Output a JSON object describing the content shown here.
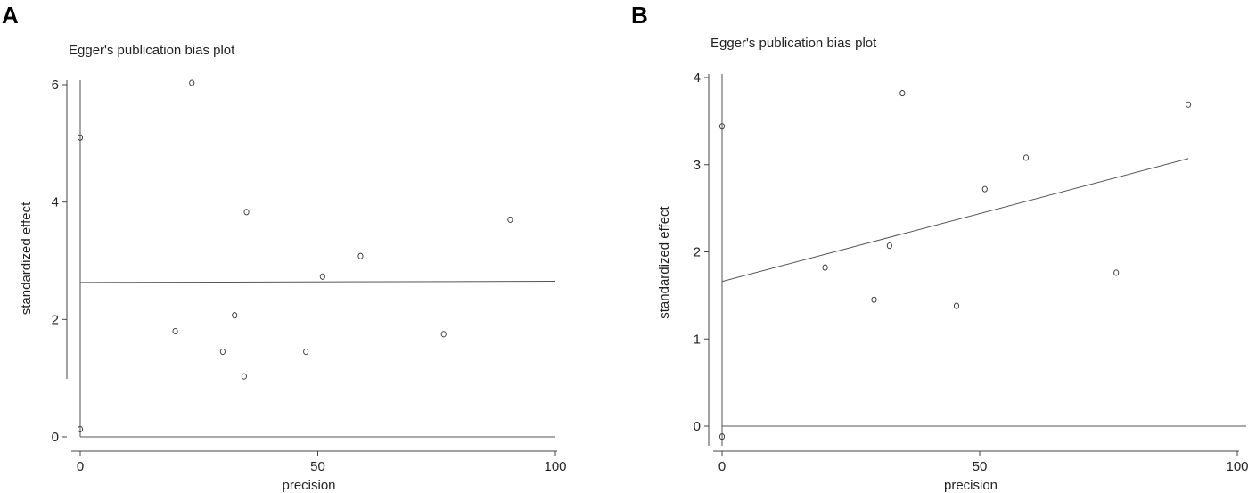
{
  "chart_data": [
    {
      "panel": "A",
      "type": "scatter",
      "title": "Egger's publication bias plot",
      "xlabel": "precision",
      "ylabel": "standardized effect",
      "xlim": [
        0,
        100
      ],
      "ylim": [
        0,
        6
      ],
      "xticks": [
        0,
        50,
        100
      ],
      "yticks": [
        0,
        2,
        4,
        6
      ],
      "grid": false,
      "points": [
        {
          "x": 0,
          "y": 5.1
        },
        {
          "x": 0,
          "y": 0.13
        },
        {
          "x": 23.5,
          "y": 6.03
        },
        {
          "x": 35,
          "y": 3.83
        },
        {
          "x": 20,
          "y": 1.8
        },
        {
          "x": 32.5,
          "y": 2.07
        },
        {
          "x": 30,
          "y": 1.45
        },
        {
          "x": 34.5,
          "y": 1.03
        },
        {
          "x": 47.5,
          "y": 1.45
        },
        {
          "x": 51,
          "y": 2.73
        },
        {
          "x": 59,
          "y": 3.08
        },
        {
          "x": 76.5,
          "y": 1.75
        },
        {
          "x": 90.5,
          "y": 3.7
        }
      ],
      "fit_line": {
        "x": [
          0,
          100
        ],
        "y": [
          2.63,
          2.65
        ]
      }
    },
    {
      "panel": "B",
      "type": "scatter",
      "title": "Egger's publication bias plot",
      "xlabel": "precision",
      "ylabel": "standardized effect",
      "xlim": [
        0,
        100
      ],
      "ylim": [
        0,
        4
      ],
      "xticks": [
        0,
        50,
        100
      ],
      "yticks": [
        0,
        1,
        2,
        3,
        4
      ],
      "grid": false,
      "points": [
        {
          "x": 0,
          "y": 3.44
        },
        {
          "x": 0,
          "y": -0.12
        },
        {
          "x": 35,
          "y": 3.82
        },
        {
          "x": 32.5,
          "y": 2.07
        },
        {
          "x": 20,
          "y": 1.82
        },
        {
          "x": 29.5,
          "y": 1.45
        },
        {
          "x": 45.5,
          "y": 1.38
        },
        {
          "x": 51,
          "y": 2.72
        },
        {
          "x": 59,
          "y": 3.08
        },
        {
          "x": 76.5,
          "y": 1.76
        },
        {
          "x": 90.5,
          "y": 3.69
        }
      ],
      "fit_line": {
        "x": [
          0,
          90.5
        ],
        "y": [
          1.66,
          3.07
        ]
      },
      "zero_line": {
        "y": 0
      }
    }
  ]
}
